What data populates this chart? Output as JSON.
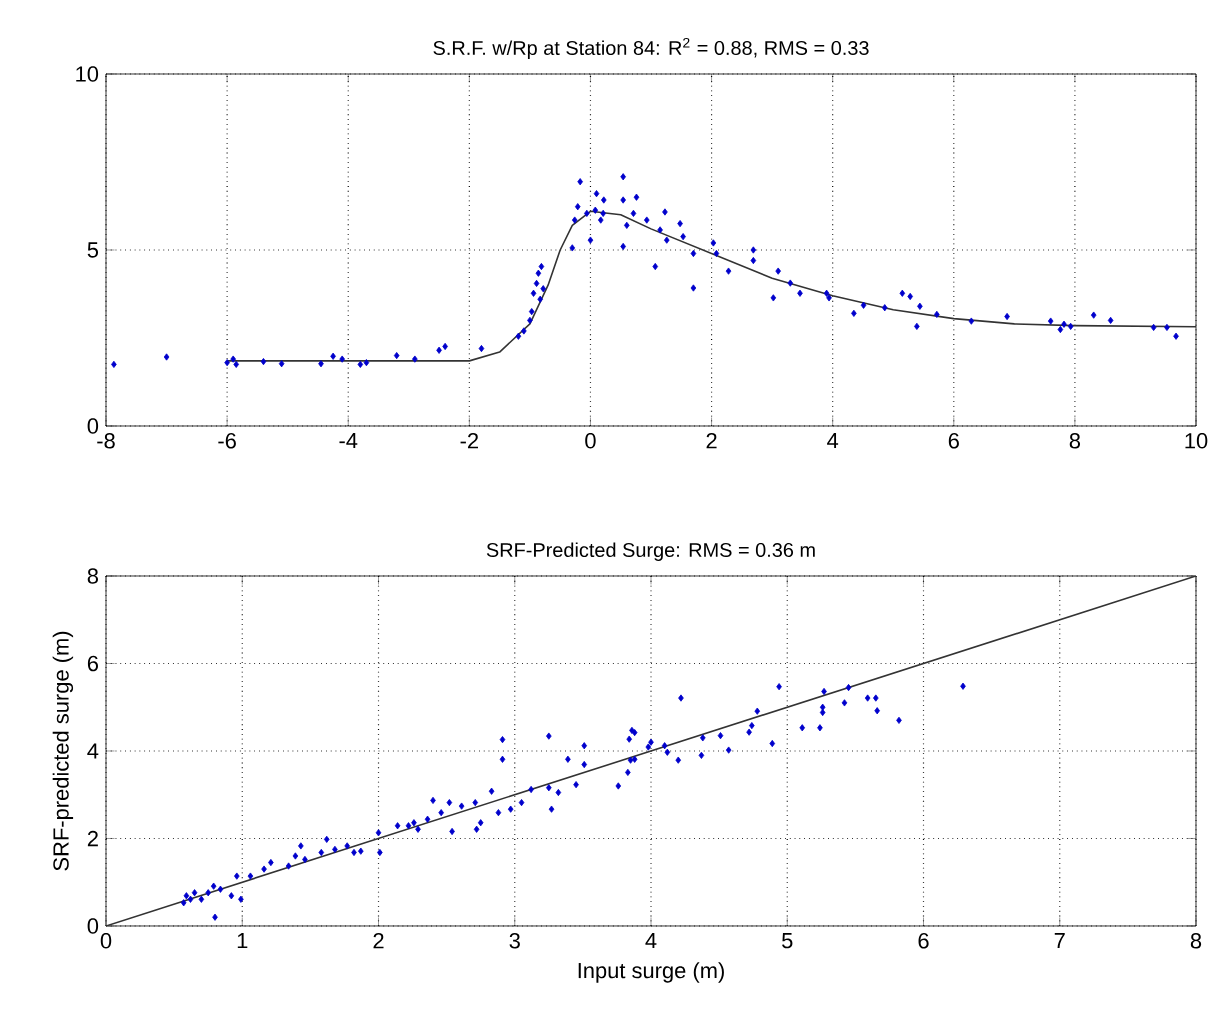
{
  "chart_data": [
    {
      "type": "scatter",
      "title": "S.R.F. w/Rp at Station 84: R$^{2}$ = 0.88, RMS = 0.33",
      "xlim": [
        -8,
        10
      ],
      "ylim": [
        0,
        10
      ],
      "xticks": [
        -8,
        -6,
        -4,
        -2,
        0,
        2,
        4,
        6,
        8,
        10
      ],
      "yticks": [
        0,
        5,
        10
      ],
      "grid": true,
      "series": [
        {
          "marker": "diamond",
          "color": "#0000cc",
          "x": [
            -7.87,
            -7.0,
            -6.0,
            -5.9,
            -5.85,
            -5.4,
            -5.1,
            -4.45,
            -4.25,
            -4.1,
            -3.8,
            -3.7,
            -3.2,
            -2.9,
            -2.5,
            -2.4,
            -1.8,
            -1.19,
            -1.1,
            -1.0,
            -0.97,
            -0.94,
            -0.89,
            -0.86,
            -0.81,
            -0.83,
            -0.78,
            -0.3,
            -0.26,
            -0.21,
            -0.17,
            -0.06,
            0.0,
            0.08,
            0.17,
            0.22,
            0.1,
            0.21,
            0.54,
            0.54,
            0.6,
            0.54,
            0.71,
            0.76,
            0.93,
            1.07,
            1.15,
            1.23,
            1.26,
            1.48,
            1.53,
            1.7,
            1.7,
            2.03,
            2.08,
            2.28,
            2.69,
            2.69,
            3.02,
            3.1,
            3.3,
            3.46,
            3.9,
            3.94,
            4.35,
            4.51,
            4.86,
            5.15,
            5.28,
            5.39,
            5.44,
            5.72,
            6.29,
            6.88,
            7.6,
            7.76,
            7.82,
            7.93,
            8.31,
            8.59,
            9.3,
            9.52,
            9.67
          ],
          "values": [
            1.75,
            1.96,
            1.8,
            1.9,
            1.75,
            1.83,
            1.77,
            1.77,
            1.98,
            1.9,
            1.75,
            1.8,
            2.0,
            1.9,
            2.15,
            2.26,
            2.2,
            2.55,
            2.7,
            3.0,
            3.25,
            3.77,
            4.05,
            4.34,
            4.53,
            3.6,
            3.9,
            5.06,
            5.85,
            6.23,
            6.94,
            6.04,
            5.28,
            6.13,
            5.85,
            6.42,
            6.6,
            6.04,
            7.08,
            6.42,
            5.7,
            5.1,
            6.04,
            6.5,
            5.85,
            4.53,
            5.57,
            6.08,
            5.28,
            5.75,
            5.38,
            4.9,
            3.92,
            5.2,
            4.9,
            4.4,
            5.0,
            4.7,
            3.64,
            4.4,
            4.06,
            3.77,
            3.77,
            3.64,
            3.2,
            3.43,
            3.36,
            3.77,
            3.68,
            2.83,
            3.4,
            3.17,
            2.98,
            3.11,
            2.98,
            2.74,
            2.89,
            2.83,
            3.15,
            3.0,
            2.8,
            2.8,
            2.55
          ]
        },
        {
          "type": "line",
          "marker": "none",
          "color": "#333333",
          "x": [
            -6,
            -4,
            -2,
            -1.5,
            -1,
            -0.7,
            -0.5,
            -0.3,
            0,
            0.5,
            1,
            2,
            3,
            4,
            5,
            6,
            7,
            8,
            10
          ],
          "values": [
            1.85,
            1.85,
            1.85,
            2.1,
            2.9,
            4.0,
            5.0,
            5.7,
            6.1,
            6.0,
            5.6,
            4.9,
            4.2,
            3.7,
            3.3,
            3.05,
            2.9,
            2.85,
            2.82
          ]
        }
      ]
    },
    {
      "type": "scatter",
      "title": "SRF-Predicted Surge: RMS = 0.36 m",
      "xlabel": "Input surge (m)",
      "ylabel": "SRF-predicted surge (m)",
      "xlim": [
        0,
        8
      ],
      "ylim": [
        0,
        8
      ],
      "xticks": [
        0,
        1,
        2,
        3,
        4,
        5,
        6,
        7,
        8
      ],
      "yticks": [
        0,
        2,
        4,
        6,
        8
      ],
      "grid": true,
      "series": [
        {
          "marker": "diamond",
          "color": "#0000cc",
          "x": [
            0.57,
            0.59,
            0.62,
            0.65,
            0.7,
            0.75,
            0.79,
            0.8,
            0.84,
            0.92,
            0.99,
            0.96,
            1.06,
            1.16,
            1.21,
            1.34,
            1.39,
            1.43,
            1.46,
            1.58,
            1.62,
            1.68,
            1.77,
            1.82,
            1.87,
            2.0,
            2.01,
            2.14,
            2.22,
            2.26,
            2.29,
            2.36,
            2.4,
            2.46,
            2.52,
            2.54,
            2.61,
            2.71,
            2.72,
            2.75,
            2.83,
            2.88,
            2.91,
            2.91,
            2.97,
            3.05,
            3.12,
            3.25,
            3.25,
            3.27,
            3.32,
            3.39,
            3.45,
            3.51,
            3.51,
            3.76,
            3.83,
            3.88,
            3.88,
            3.84,
            3.86,
            3.85,
            3.98,
            4.0,
            4.1,
            4.12,
            4.2,
            4.22,
            4.37,
            4.38,
            4.51,
            4.57,
            4.72,
            4.74,
            4.78,
            4.89,
            4.94,
            5.11,
            5.24,
            5.26,
            5.26,
            5.27,
            5.42,
            5.45,
            5.59,
            5.65,
            5.66,
            5.82,
            6.29
          ],
          "values": [
            0.53,
            0.69,
            0.61,
            0.76,
            0.61,
            0.76,
            0.91,
            0.2,
            0.84,
            0.69,
            0.61,
            1.14,
            1.14,
            1.3,
            1.45,
            1.37,
            1.6,
            1.83,
            1.52,
            1.68,
            1.98,
            1.75,
            1.83,
            1.68,
            1.71,
            2.13,
            1.68,
            2.29,
            2.29,
            2.36,
            2.21,
            2.44,
            2.87,
            2.59,
            2.82,
            2.16,
            2.74,
            2.82,
            2.21,
            2.36,
            3.08,
            2.59,
            4.26,
            3.81,
            2.67,
            2.82,
            3.12,
            4.34,
            3.16,
            2.67,
            3.05,
            3.81,
            3.23,
            4.12,
            3.69,
            3.2,
            3.51,
            4.42,
            3.81,
            4.27,
            4.47,
            3.79,
            4.09,
            4.2,
            4.12,
            3.97,
            3.79,
            5.21,
            3.9,
            4.3,
            4.35,
            4.02,
            4.43,
            4.58,
            4.91,
            4.17,
            5.47,
            4.53,
            4.53,
            4.88,
            5.0,
            5.36,
            5.1,
            5.45,
            5.21,
            5.21,
            4.92,
            4.7,
            5.48
          ]
        },
        {
          "type": "line",
          "marker": "none",
          "color": "#333333",
          "x": [
            0,
            8
          ],
          "values": [
            0,
            8
          ]
        }
      ]
    }
  ]
}
